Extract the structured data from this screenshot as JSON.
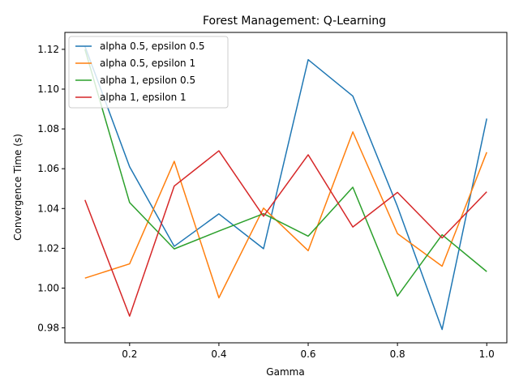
{
  "chart_data": {
    "type": "line",
    "title": "Forest Management: Q-Learning",
    "xlabel": "Gamma",
    "ylabel": "Convergence Time (s)",
    "xlim": [
      0.055,
      1.045
    ],
    "ylim": [
      0.9725,
      1.1285
    ],
    "xticks": [
      0.2,
      0.4,
      0.6,
      0.8,
      1.0
    ],
    "xtick_labels": [
      "0.2",
      "0.4",
      "0.6",
      "0.8",
      "1.0"
    ],
    "yticks": [
      0.98,
      1.0,
      1.02,
      1.04,
      1.06,
      1.08,
      1.1,
      1.12
    ],
    "ytick_labels": [
      "0.98",
      "1.00",
      "1.02",
      "1.04",
      "1.06",
      "1.08",
      "1.10",
      "1.12"
    ],
    "grid": false,
    "legend_position": "top-left",
    "x": [
      0.1,
      0.2,
      0.3,
      0.4,
      0.5,
      0.6,
      0.7,
      0.8,
      0.9,
      1.0
    ],
    "series": [
      {
        "name": "alpha 0.5, epsilon 0.5",
        "color": "#1f77b4",
        "values": [
          1.1215,
          1.061,
          1.021,
          1.0373,
          1.0198,
          1.1148,
          1.0965,
          1.041,
          0.9792,
          1.0852
        ]
      },
      {
        "name": "alpha 0.5, epsilon 1",
        "color": "#ff7f0e",
        "values": [
          1.005,
          1.0122,
          1.0637,
          0.9951,
          1.0402,
          1.0188,
          1.0785,
          1.0274,
          1.011,
          1.0683
        ]
      },
      {
        "name": "alpha 1, epsilon 0.5",
        "color": "#2ca02c",
        "values": [
          1.12,
          1.043,
          1.0197,
          1.0287,
          1.0374,
          1.0261,
          1.0507,
          0.996,
          1.0268,
          1.0083
        ]
      },
      {
        "name": "alpha 1, epsilon 1",
        "color": "#d62728",
        "values": [
          1.0443,
          0.9859,
          1.0513,
          1.069,
          1.0361,
          1.067,
          1.0307,
          1.0481,
          1.0252,
          1.0484
        ]
      }
    ]
  }
}
